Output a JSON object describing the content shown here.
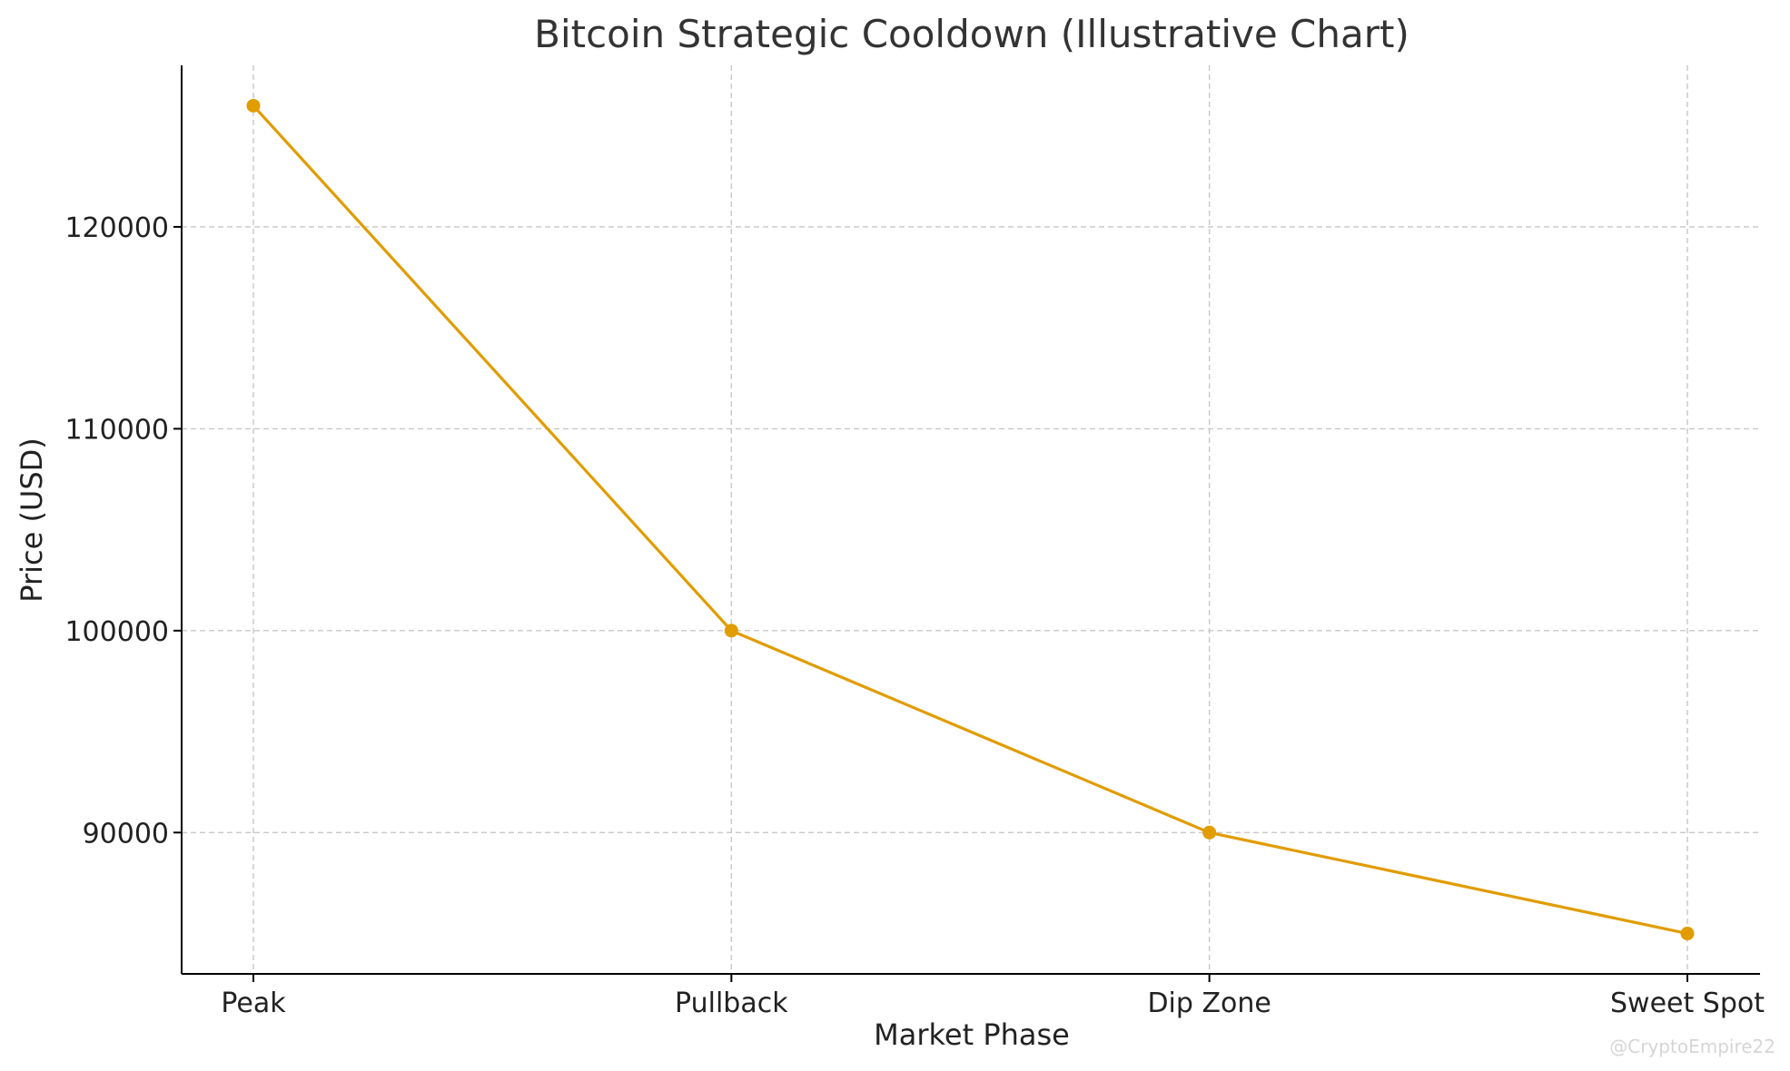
{
  "chart_data": {
    "type": "line",
    "title": "Bitcoin Strategic Cooldown (Illustrative Chart)",
    "xlabel": "Market Phase",
    "ylabel": "Price (USD)",
    "categories": [
      "Peak",
      "Pullback",
      "Dip Zone",
      "Sweet Spot"
    ],
    "series": [
      {
        "values": [
          126000,
          100000,
          90000,
          85000
        ]
      }
    ],
    "ylim": [
      83000,
      128000
    ],
    "yticks": [
      90000,
      100000,
      110000,
      120000
    ],
    "grid": true,
    "colors": {
      "line": "#E19C00",
      "grid": "#c8c8c8",
      "text": "#222222"
    }
  },
  "watermark": "@CryptoEmpire22"
}
